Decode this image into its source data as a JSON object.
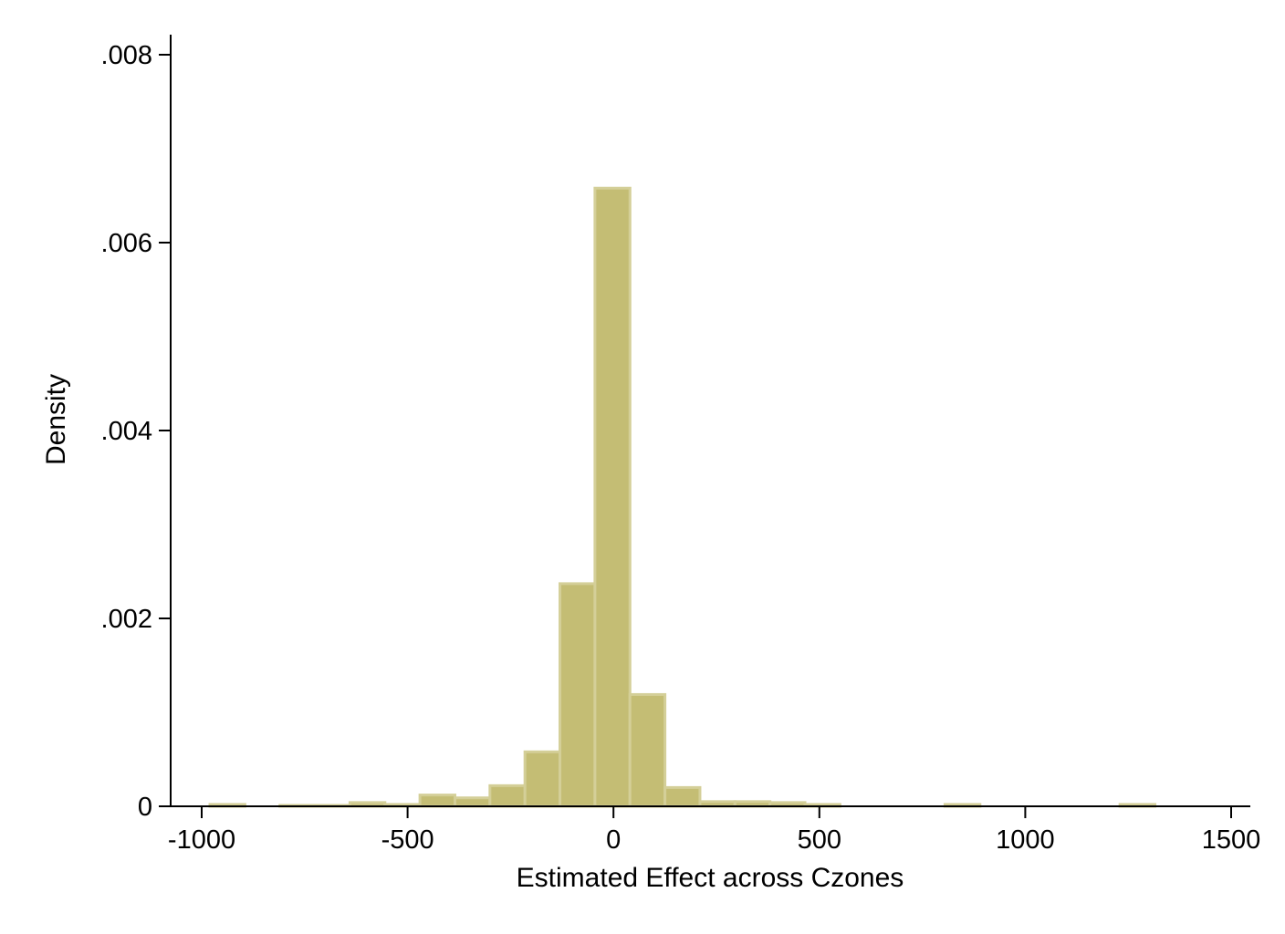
{
  "chart_data": {
    "type": "bar",
    "subtype": "histogram",
    "title": "",
    "xlabel": "Estimated Effect across Czones",
    "ylabel": "Density",
    "xlim": [
      -1000,
      1500
    ],
    "ylim": [
      0,
      0.008
    ],
    "grid": false,
    "legend": "none",
    "bar_color": "#c4bd74",
    "bar_edge_color": "#d4cf98",
    "x_ticks": [
      {
        "value": -1000,
        "label": "-1000"
      },
      {
        "value": -500,
        "label": "-500"
      },
      {
        "value": 0,
        "label": "0"
      },
      {
        "value": 500,
        "label": "500"
      },
      {
        "value": 1000,
        "label": "1000"
      },
      {
        "value": 1500,
        "label": "1500"
      }
    ],
    "y_ticks": [
      {
        "value": 0,
        "label": "0"
      },
      {
        "value": 0.002,
        "label": ".002"
      },
      {
        "value": 0.004,
        "label": ".004"
      },
      {
        "value": 0.006,
        "label": ".006"
      },
      {
        "value": 0.008,
        "label": ".008"
      }
    ],
    "bins": [
      {
        "start": -980,
        "end": -895,
        "density": 2e-05
      },
      {
        "start": -810,
        "end": -725,
        "density": 1e-05
      },
      {
        "start": -725,
        "end": -640,
        "density": 1e-05
      },
      {
        "start": -640,
        "end": -555,
        "density": 4e-05
      },
      {
        "start": -555,
        "end": -470,
        "density": 2e-05
      },
      {
        "start": -470,
        "end": -385,
        "density": 0.00012
      },
      {
        "start": -385,
        "end": -300,
        "density": 9e-05
      },
      {
        "start": -300,
        "end": -215,
        "density": 0.00022
      },
      {
        "start": -215,
        "end": -130,
        "density": 0.00058
      },
      {
        "start": -130,
        "end": -45,
        "density": 0.00237
      },
      {
        "start": -45,
        "end": 40,
        "density": 0.00658
      },
      {
        "start": 40,
        "end": 125,
        "density": 0.00119
      },
      {
        "start": 125,
        "end": 210,
        "density": 0.0002
      },
      {
        "start": 210,
        "end": 295,
        "density": 5e-05
      },
      {
        "start": 295,
        "end": 380,
        "density": 5e-05
      },
      {
        "start": 380,
        "end": 465,
        "density": 4e-05
      },
      {
        "start": 465,
        "end": 550,
        "density": 2e-05
      },
      {
        "start": 805,
        "end": 890,
        "density": 2e-05
      },
      {
        "start": 1230,
        "end": 1315,
        "density": 2e-05
      }
    ]
  }
}
